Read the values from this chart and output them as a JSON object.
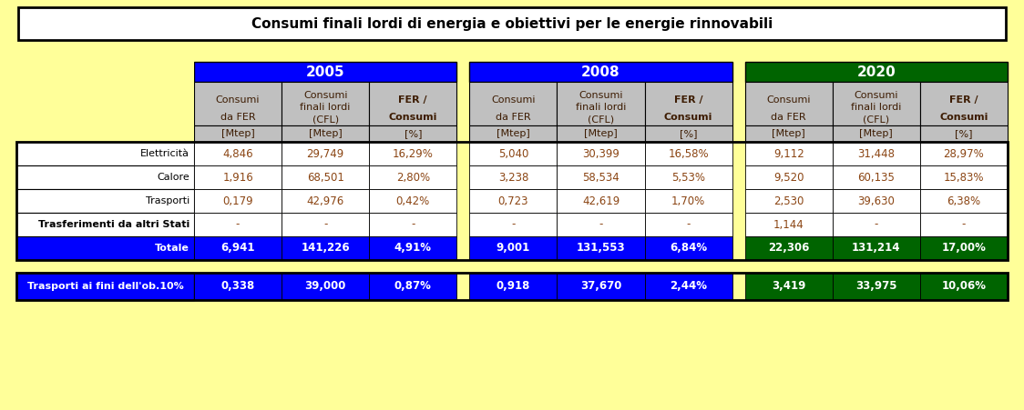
{
  "title": "Consumi finali lordi di energia e obiettivi per le energie rinnovabili",
  "bg_color": "#FFFF99",
  "year_headers": [
    "2005",
    "2008",
    "2020"
  ],
  "year_colors": [
    "#0000FF",
    "#0000FF",
    "#006400"
  ],
  "col_headers": [
    "Consumi\nda FER",
    "Consumi\nfinali lordi\n(CFL)",
    "FER /\nConsumi"
  ],
  "col_header_bold": [
    false,
    false,
    true
  ],
  "unit_headers": [
    "[Mtep]",
    "[Mtep]",
    "[%]"
  ],
  "data_text_color": "#8B4513",
  "header_text_color": "#3D1C02",
  "header_bg": "#C0C0C0",
  "rows": [
    {
      "label": "Elettricità",
      "bold": false,
      "bg": "#FFFFFF",
      "data": [
        [
          "4,846",
          "29,749",
          "16,29%"
        ],
        [
          "5,040",
          "30,399",
          "16,58%"
        ],
        [
          "9,112",
          "31,448",
          "28,97%"
        ]
      ]
    },
    {
      "label": "Calore",
      "bold": false,
      "bg": "#FFFFFF",
      "data": [
        [
          "1,916",
          "68,501",
          "2,80%"
        ],
        [
          "3,238",
          "58,534",
          "5,53%"
        ],
        [
          "9,520",
          "60,135",
          "15,83%"
        ]
      ]
    },
    {
      "label": "Trasporti",
      "bold": false,
      "bg": "#FFFFFF",
      "data": [
        [
          "0,179",
          "42,976",
          "0,42%"
        ],
        [
          "0,723",
          "42,619",
          "1,70%"
        ],
        [
          "2,530",
          "39,630",
          "6,38%"
        ]
      ]
    },
    {
      "label": "Trasferimenti da altri Stati",
      "bold": true,
      "bg": "#FFFFFF",
      "data": [
        [
          "-",
          "-",
          "-"
        ],
        [
          "-",
          "-",
          "-"
        ],
        [
          "1,144",
          "-",
          "-"
        ]
      ]
    },
    {
      "label": "Totale",
      "bold": true,
      "bg_label": "#0000FF",
      "bg_2005": "#0000FF",
      "bg_2008": "#0000FF",
      "bg_2020": "#006400",
      "label_color": "#FFFFFF",
      "data_color": "#FFFFFF",
      "data": [
        [
          "6,941",
          "141,226",
          "4,91%"
        ],
        [
          "9,001",
          "131,553",
          "6,84%"
        ],
        [
          "22,306",
          "131,214",
          "17,00%"
        ]
      ]
    }
  ],
  "bottom_row": {
    "label": "Trasporti ai fini dell'ob.10%",
    "label_bg": "#0000FF",
    "label_color": "#FFFFFF",
    "data": [
      [
        "0,338",
        "39,000",
        "0,87%"
      ],
      [
        "0,918",
        "37,670",
        "2,44%"
      ],
      [
        "3,419",
        "33,975",
        "10,06%"
      ]
    ],
    "data_bg": [
      "#0000FF",
      "#0000FF",
      "#006400"
    ],
    "data_color": "#FFFFFF"
  },
  "totale_2020_bg": "#006400"
}
